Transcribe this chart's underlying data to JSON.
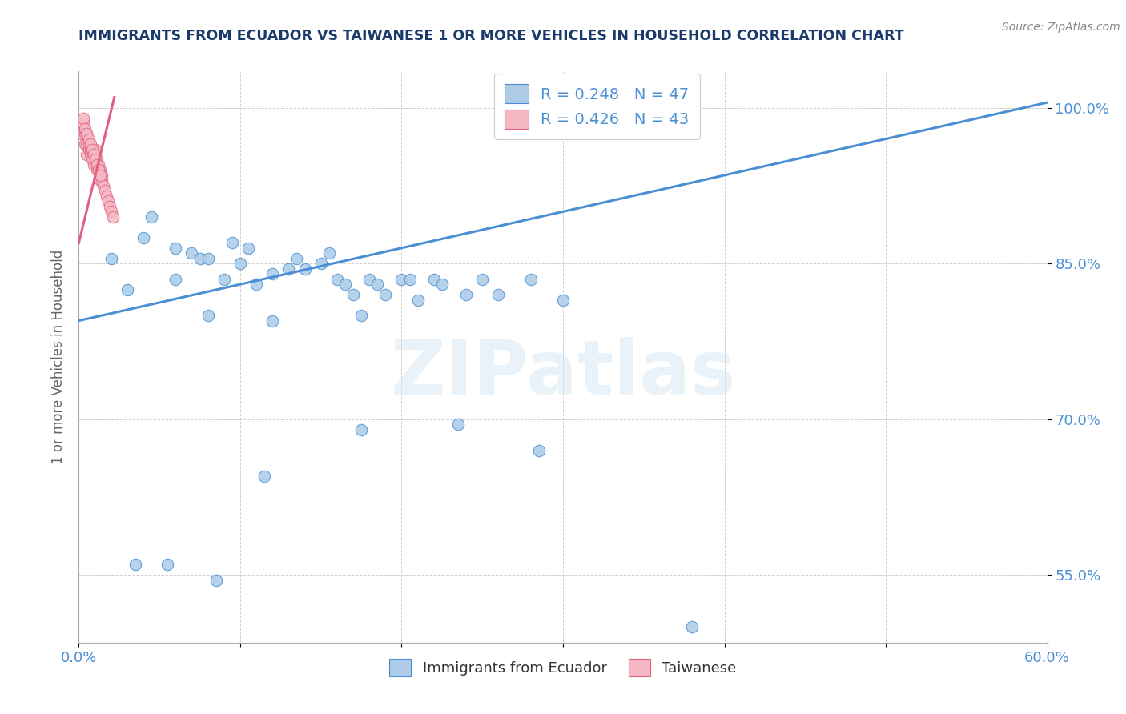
{
  "title": "IMMIGRANTS FROM ECUADOR VS TAIWANESE 1 OR MORE VEHICLES IN HOUSEHOLD CORRELATION CHART",
  "source": "Source: ZipAtlas.com",
  "ylabel": "1 or more Vehicles in Household",
  "xlim": [
    0.0,
    0.6
  ],
  "ylim": [
    0.485,
    1.035
  ],
  "xticks": [
    0.0,
    0.1,
    0.2,
    0.3,
    0.4,
    0.5,
    0.6
  ],
  "xticklabels": [
    "0.0%",
    "",
    "",
    "",
    "",
    "",
    "60.0%"
  ],
  "ytick_positions": [
    0.55,
    0.7,
    0.85,
    1.0
  ],
  "yticklabels": [
    "55.0%",
    "70.0%",
    "85.0%",
    "100.0%"
  ],
  "r_ecuador": 0.248,
  "n_ecuador": 47,
  "r_taiwanese": 0.426,
  "n_taiwanese": 43,
  "ecuador_color": "#aecce8",
  "taiwanese_color": "#f5b8c4",
  "trendline_ecuador_color": "#4a8fd4",
  "trendline_taiwanese_color": "#e06080",
  "watermark_text": "ZIPatlas",
  "title_color": "#1a3a6b",
  "tick_color": "#4a8fd4",
  "source_color": "#888888",
  "ecuador_trendline_x": [
    0.0,
    0.6
  ],
  "ecuador_trendline_y": [
    0.795,
    1.005
  ],
  "taiwanese_trendline_x": [
    0.0,
    0.022
  ],
  "taiwanese_trendline_y": [
    0.87,
    1.01
  ],
  "ecuador_scatter_x": [
    0.02,
    0.03,
    0.04,
    0.045,
    0.06,
    0.06,
    0.07,
    0.075,
    0.08,
    0.09,
    0.095,
    0.1,
    0.105,
    0.11,
    0.12,
    0.13,
    0.135,
    0.14,
    0.15,
    0.155,
    0.16,
    0.165,
    0.17,
    0.18,
    0.185,
    0.19,
    0.2,
    0.205,
    0.21,
    0.22,
    0.225,
    0.24,
    0.25,
    0.26,
    0.28,
    0.3,
    0.08,
    0.12,
    0.175,
    0.035,
    0.055,
    0.085,
    0.115,
    0.175,
    0.235,
    0.285,
    0.38
  ],
  "ecuador_scatter_y": [
    0.855,
    0.825,
    0.875,
    0.895,
    0.835,
    0.865,
    0.86,
    0.855,
    0.855,
    0.835,
    0.87,
    0.85,
    0.865,
    0.83,
    0.84,
    0.845,
    0.855,
    0.845,
    0.85,
    0.86,
    0.835,
    0.83,
    0.82,
    0.835,
    0.83,
    0.82,
    0.835,
    0.835,
    0.815,
    0.835,
    0.83,
    0.82,
    0.835,
    0.82,
    0.835,
    0.815,
    0.8,
    0.795,
    0.8,
    0.56,
    0.56,
    0.545,
    0.645,
    0.69,
    0.695,
    0.67,
    0.5
  ],
  "taiwanese_scatter_x": [
    0.002,
    0.003,
    0.004,
    0.004,
    0.005,
    0.005,
    0.005,
    0.006,
    0.006,
    0.007,
    0.007,
    0.008,
    0.008,
    0.009,
    0.009,
    0.01,
    0.01,
    0.011,
    0.011,
    0.012,
    0.012,
    0.013,
    0.013,
    0.014,
    0.014,
    0.015,
    0.016,
    0.017,
    0.018,
    0.019,
    0.02,
    0.021,
    0.003,
    0.004,
    0.005,
    0.006,
    0.007,
    0.008,
    0.009,
    0.01,
    0.011,
    0.012,
    0.013
  ],
  "taiwanese_scatter_y": [
    0.975,
    0.985,
    0.975,
    0.965,
    0.975,
    0.965,
    0.955,
    0.96,
    0.965,
    0.955,
    0.96,
    0.95,
    0.96,
    0.945,
    0.955,
    0.95,
    0.96,
    0.94,
    0.95,
    0.94,
    0.945,
    0.93,
    0.94,
    0.93,
    0.935,
    0.925,
    0.92,
    0.915,
    0.91,
    0.905,
    0.9,
    0.895,
    0.99,
    0.98,
    0.975,
    0.97,
    0.965,
    0.96,
    0.955,
    0.95,
    0.945,
    0.94,
    0.935
  ]
}
